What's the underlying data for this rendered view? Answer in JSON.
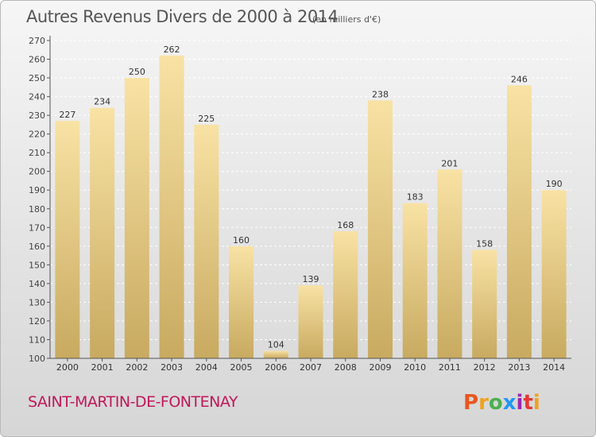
{
  "header": {
    "title": "Autres Revenus Divers de 2000 à 2014",
    "subtitle": "(en milliers d'€)"
  },
  "footer": {
    "commune": "SAINT-MARTIN-DE-FONTENAY",
    "logo": {
      "letters": [
        "P",
        "r",
        "o",
        "x",
        "i",
        "t",
        "i"
      ],
      "colors": [
        "#e8561e",
        "#f0a21a",
        "#4caf50",
        "#2196f3",
        "#9c27b0",
        "#e53935",
        "#f0a21a"
      ]
    }
  },
  "colors": {
    "bar_light": "#f8e2a4",
    "bar_dark": "#c8aa60",
    "axis": "#555555",
    "grid": "#ffffff",
    "commune": "#c2185b"
  },
  "chart_data": {
    "type": "bar",
    "title": "Autres Revenus Divers de 2000 à 2014",
    "subtitle": "(en milliers d'€)",
    "categories": [
      "2000",
      "2001",
      "2002",
      "2003",
      "2004",
      "2005",
      "2006",
      "2007",
      "2008",
      "2009",
      "2010",
      "2011",
      "2012",
      "2013",
      "2014"
    ],
    "values": [
      227,
      234,
      250,
      262,
      225,
      160,
      104,
      139,
      168,
      238,
      183,
      201,
      158,
      246,
      190
    ],
    "ylim": [
      100,
      270
    ],
    "yticks": [
      100,
      110,
      120,
      130,
      140,
      150,
      160,
      170,
      180,
      190,
      200,
      210,
      220,
      230,
      240,
      250,
      260,
      270
    ],
    "grid": true,
    "data_labels": true
  }
}
